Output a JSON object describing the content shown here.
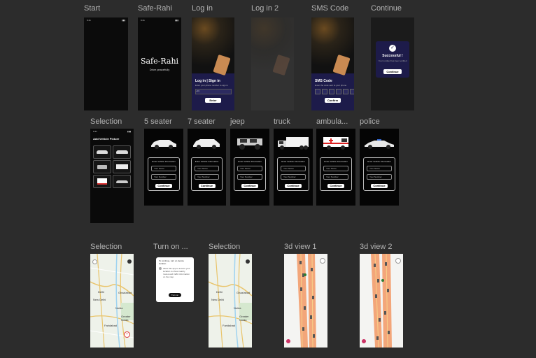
{
  "row1": {
    "start": {
      "label": "Start"
    },
    "safe": {
      "label": "Safe-Rahi",
      "title": "Safe-Rahi",
      "tagline": "Drive peacefully"
    },
    "login": {
      "label": "Log in",
      "heading": "Log in | Sign in",
      "hint": "Enter your phone number to sign in",
      "button": "Enter"
    },
    "login2": {
      "label": "Log in 2"
    },
    "sms": {
      "label": "SMS Code",
      "heading": "SMS Code",
      "hint": "Enter the code sent to your phone",
      "button": "Confirm"
    },
    "cont": {
      "label": "Continue",
      "title": "Successful !",
      "msg": "Your number has been verified",
      "button": "Continue"
    }
  },
  "row2": {
    "selection": {
      "label": "Selection",
      "heading": "Add Vehicle Picture"
    },
    "card_title": "Enter Vehicle Information",
    "field1": "Your Name",
    "field2": "Your Number",
    "button": "Continue",
    "vehicles": [
      {
        "label": "5 seater"
      },
      {
        "label": "7 seater"
      },
      {
        "label": "jeep"
      },
      {
        "label": "truck"
      },
      {
        "label": "ambula..."
      },
      {
        "label": "police"
      }
    ]
  },
  "row3": {
    "sel1": {
      "label": "Selection"
    },
    "turn": {
      "label": "Turn on ...",
      "title": "To continue, turn on device location",
      "body": "Allow this app to access your location to show nearby routes and traffic information on the map.",
      "button": "Turn on"
    },
    "sel2": {
      "label": "Selection"
    },
    "v1": {
      "label": "3d view 1"
    },
    "v2": {
      "label": "3d view 2"
    },
    "map_labels": {
      "delhi": "Delhi",
      "new_delhi": "New Delhi",
      "ghaziabad": "Ghaziabad",
      "noida": "Noida",
      "greater_noida": "Greater Noida",
      "faridabad": "Faridabad"
    }
  }
}
